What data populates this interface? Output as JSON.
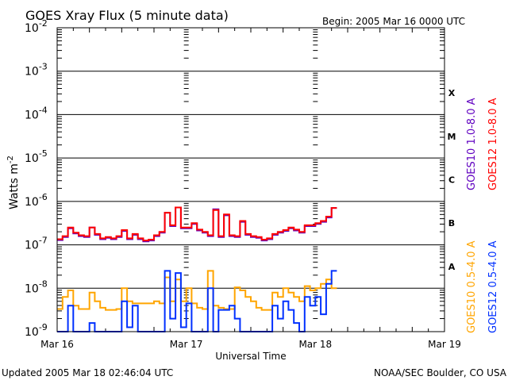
{
  "chart_data": {
    "type": "line",
    "title": "GOES Xray Flux (5 minute data)",
    "begin": "Begin:  2005 Mar 16 0000 UTC",
    "xlabel": "Universal Time",
    "ylabel": "Watts m",
    "ylabel_sup": "-2",
    "x_unit": "hours since 2005 Mar 16 0000 UTC",
    "xlim": [
      0,
      72
    ],
    "ylim_log10": [
      -9,
      -2
    ],
    "y_scale": "log",
    "x_ticks": [
      {
        "h": 0,
        "label": "Mar 16"
      },
      {
        "h": 24,
        "label": "Mar 17"
      },
      {
        "h": 48,
        "label": "Mar 18"
      },
      {
        "h": 72,
        "label": "Mar 19"
      }
    ],
    "y_ticks": [
      {
        "exp": -2,
        "label": "-2"
      },
      {
        "exp": -3,
        "label": "-3"
      },
      {
        "exp": -4,
        "label": "-4"
      },
      {
        "exp": -5,
        "label": "-5"
      },
      {
        "exp": -6,
        "label": "-6"
      },
      {
        "exp": -7,
        "label": "-7"
      },
      {
        "exp": -8,
        "label": "-8"
      },
      {
        "exp": -9,
        "label": "-9"
      }
    ],
    "flare_classes": [
      {
        "label": "X",
        "exp": -3.5
      },
      {
        "label": "M",
        "exp": -4.5
      },
      {
        "label": "C",
        "exp": -5.5
      },
      {
        "label": "B",
        "exp": -6.5
      },
      {
        "label": "A",
        "exp": -7.5
      }
    ],
    "series": [
      {
        "name": "GOES10 1.0-8.0 A",
        "color": "#6000c0",
        "offset": -0.02,
        "values": [
          -6.87,
          -6.8,
          -6.6,
          -6.72,
          -6.78,
          -6.8,
          -6.58,
          -6.75,
          -6.85,
          -6.82,
          -6.85,
          -6.8,
          -6.66,
          -6.85,
          -6.75,
          -6.85,
          -6.9,
          -6.88,
          -6.78,
          -6.7,
          -6.24,
          -6.55,
          -6.12,
          -6.6,
          -6.6,
          -6.5,
          -6.65,
          -6.7,
          -6.78,
          -6.16,
          -6.8,
          -6.3,
          -6.78,
          -6.8,
          -6.45,
          -6.75,
          -6.8,
          -6.82,
          -6.88,
          -6.85,
          -6.75,
          -6.7,
          -6.66,
          -6.6,
          -6.65,
          -6.7,
          -6.55,
          -6.55,
          -6.5,
          -6.45,
          -6.35,
          -6.13
        ]
      },
      {
        "name": "GOES12 1.0-8.0 A",
        "color": "#ff0000",
        "offset": 0,
        "values": [
          -6.87,
          -6.8,
          -6.6,
          -6.72,
          -6.78,
          -6.8,
          -6.6,
          -6.75,
          -6.85,
          -6.82,
          -6.85,
          -6.8,
          -6.66,
          -6.85,
          -6.75,
          -6.85,
          -6.9,
          -6.88,
          -6.78,
          -6.7,
          -6.26,
          -6.55,
          -6.14,
          -6.6,
          -6.6,
          -6.5,
          -6.65,
          -6.7,
          -6.78,
          -6.2,
          -6.8,
          -6.3,
          -6.78,
          -6.8,
          -6.45,
          -6.75,
          -6.8,
          -6.82,
          -6.88,
          -6.85,
          -6.75,
          -6.7,
          -6.66,
          -6.6,
          -6.65,
          -6.7,
          -6.55,
          -6.55,
          -6.5,
          -6.45,
          -6.35,
          -6.15
        ]
      },
      {
        "name": "GOES10 0.5-4.0 A",
        "color": "#ffa500",
        "offset": 0,
        "values": [
          -8.48,
          -8.2,
          -8.05,
          -8.4,
          -8.48,
          -8.48,
          -8.1,
          -8.3,
          -8.45,
          -8.5,
          -8.5,
          -8.48,
          -8.0,
          -8.3,
          -8.35,
          -8.35,
          -8.35,
          -8.35,
          -8.3,
          -8.35,
          -7.75,
          -8.3,
          -7.8,
          -8.3,
          -8.0,
          -8.35,
          -8.45,
          -8.48,
          -7.6,
          -8.4,
          -8.45,
          -8.48,
          -8.48,
          -7.98,
          -8.05,
          -8.2,
          -8.3,
          -8.45,
          -8.5,
          -8.5,
          -8.1,
          -8.2,
          -8.0,
          -8.1,
          -8.2,
          -8.3,
          -7.95,
          -8.05,
          -8.0,
          -7.9,
          -7.8,
          -8.0
        ]
      },
      {
        "name": "GOES12 0.5-4.0 A",
        "color": "#0030ff",
        "offset": 0,
        "values": [
          -9.3,
          -9.0,
          -8.4,
          -9.1,
          -9.3,
          -9.3,
          -8.8,
          -9.0,
          -9.3,
          -9.1,
          -9.3,
          -9.3,
          -8.3,
          -8.9,
          -8.4,
          -9.0,
          -9.1,
          -9.3,
          -9.0,
          -9.3,
          -7.6,
          -8.7,
          -7.65,
          -8.9,
          -8.35,
          -9.0,
          -9.0,
          -9.1,
          -8.0,
          -9.0,
          -8.5,
          -8.5,
          -8.4,
          -8.7,
          -9.0,
          -9.2,
          -9.3,
          -9.2,
          -9.3,
          -9.1,
          -8.4,
          -8.7,
          -8.3,
          -8.5,
          -8.8,
          -9.0,
          -8.2,
          -8.4,
          -8.2,
          -8.6,
          -7.9,
          -7.6
        ]
      }
    ],
    "footer_left": "Updated 2005 Mar 18 02:46:04 UTC",
    "footer_right": "NOAA/SEC Boulder, CO USA"
  }
}
